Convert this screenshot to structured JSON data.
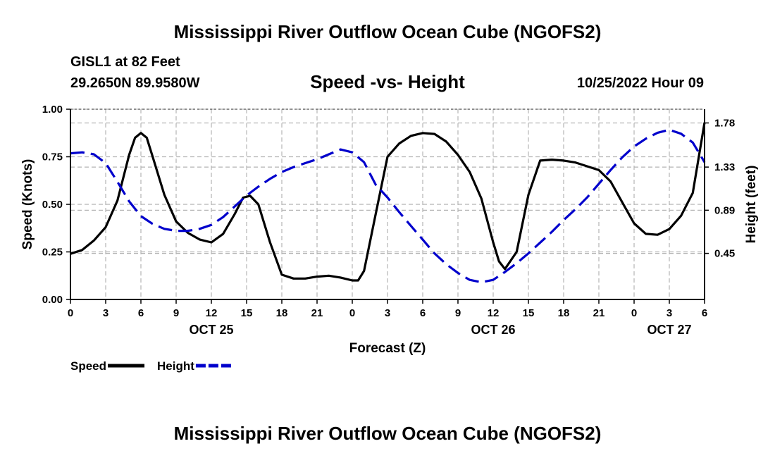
{
  "header": {
    "title": "Mississippi River Outflow Ocean Cube (NGOFS2)",
    "station": "GISL1 at 82 Feet",
    "coords": "29.2650N  89.9580W",
    "subtitle": "Speed -vs- Height",
    "datetime": "10/25/2022 Hour 09",
    "bottom_title": "Mississippi River Outflow Ocean Cube (NGOFS2)"
  },
  "colors": {
    "speed": "#000000",
    "height": "#0000cc",
    "grid": "#b4b4b4"
  },
  "chart_data": {
    "type": "line",
    "title": "Speed -vs- Height",
    "xlabel": "Forecast (Z)",
    "ylabel": "Speed (Knots)",
    "y2label": "Height (feet)",
    "xlim": [
      0,
      54
    ],
    "ylim": [
      0,
      1.0
    ],
    "y2lim": [
      -0.02,
      1.92
    ],
    "x_ticks": [
      0,
      3,
      6,
      9,
      12,
      15,
      18,
      21,
      24,
      27,
      30,
      33,
      36,
      39,
      42,
      45,
      48,
      51,
      54
    ],
    "x_tick_labels": [
      "0",
      "3",
      "6",
      "9",
      "12",
      "15",
      "18",
      "21",
      "0",
      "3",
      "6",
      "9",
      "12",
      "15",
      "18",
      "21",
      "0",
      "3",
      "6"
    ],
    "date_labels": [
      {
        "x": 12,
        "label": "OCT 25"
      },
      {
        "x": 36,
        "label": "OCT 26"
      },
      {
        "x": 51,
        "label": "OCT 27"
      }
    ],
    "y_ticks": [
      0,
      0.25,
      0.5,
      0.75,
      1.0
    ],
    "y_tick_labels": [
      "0.00",
      "0.25",
      "0.50",
      "0.75",
      "1.00"
    ],
    "y2_ticks": [
      0.45,
      0.89,
      1.33,
      1.78
    ],
    "y2_tick_labels": [
      "0.45",
      "0.89",
      "1.33",
      "1.78"
    ],
    "legend": [
      {
        "name": "Speed",
        "style": "solid"
      },
      {
        "name": "Height",
        "style": "dashed"
      }
    ],
    "legend_position": "bottom-left",
    "grid": true,
    "series": [
      {
        "name": "Speed",
        "axis": "left",
        "style": "solid",
        "x": [
          0,
          1,
          2,
          3,
          4,
          5,
          5.5,
          6,
          6.5,
          7,
          8,
          9,
          10,
          11,
          12,
          13,
          14,
          14.7,
          15.3,
          16,
          17,
          18,
          19,
          20,
          21,
          22,
          23,
          24,
          24.5,
          25,
          26,
          27,
          28,
          29,
          30,
          31,
          32,
          33,
          34,
          35,
          36,
          36.5,
          37,
          38,
          39,
          40,
          41,
          42,
          43,
          44,
          45,
          46,
          47,
          48,
          49,
          50,
          51,
          52,
          53,
          54
        ],
        "values": [
          0.24,
          0.26,
          0.31,
          0.38,
          0.52,
          0.76,
          0.85,
          0.875,
          0.85,
          0.75,
          0.55,
          0.41,
          0.35,
          0.315,
          0.3,
          0.345,
          0.45,
          0.535,
          0.545,
          0.5,
          0.3,
          0.13,
          0.11,
          0.11,
          0.12,
          0.125,
          0.115,
          0.1,
          0.1,
          0.15,
          0.45,
          0.75,
          0.82,
          0.86,
          0.875,
          0.87,
          0.83,
          0.76,
          0.67,
          0.53,
          0.3,
          0.2,
          0.16,
          0.25,
          0.55,
          0.73,
          0.735,
          0.73,
          0.72,
          0.7,
          0.68,
          0.62,
          0.51,
          0.4,
          0.345,
          0.34,
          0.37,
          0.44,
          0.56,
          0.93
        ]
      },
      {
        "name": "Height",
        "axis": "right",
        "style": "dashed",
        "x": [
          0,
          1,
          2,
          3,
          4,
          5,
          6,
          7,
          8,
          9,
          10,
          11,
          12,
          13,
          14,
          15,
          16,
          17,
          18,
          19,
          20,
          21,
          22,
          23,
          24,
          25,
          26,
          27,
          28,
          29,
          30,
          31,
          32,
          33,
          34,
          35,
          36,
          37,
          38,
          39,
          40,
          41,
          42,
          43,
          44,
          45,
          46,
          47,
          48,
          49,
          50,
          51,
          52,
          53,
          54
        ],
        "values": [
          1.47,
          1.48,
          1.46,
          1.37,
          1.18,
          0.98,
          0.83,
          0.75,
          0.7,
          0.68,
          0.68,
          0.7,
          0.74,
          0.82,
          0.93,
          1.04,
          1.13,
          1.21,
          1.28,
          1.33,
          1.37,
          1.41,
          1.46,
          1.51,
          1.48,
          1.38,
          1.15,
          1.02,
          0.87,
          0.73,
          0.59,
          0.45,
          0.34,
          0.25,
          0.18,
          0.155,
          0.18,
          0.26,
          0.35,
          0.45,
          0.56,
          0.67,
          0.79,
          0.9,
          1.02,
          1.16,
          1.3,
          1.43,
          1.54,
          1.62,
          1.68,
          1.71,
          1.67,
          1.58,
          1.38
        ]
      }
    ]
  }
}
